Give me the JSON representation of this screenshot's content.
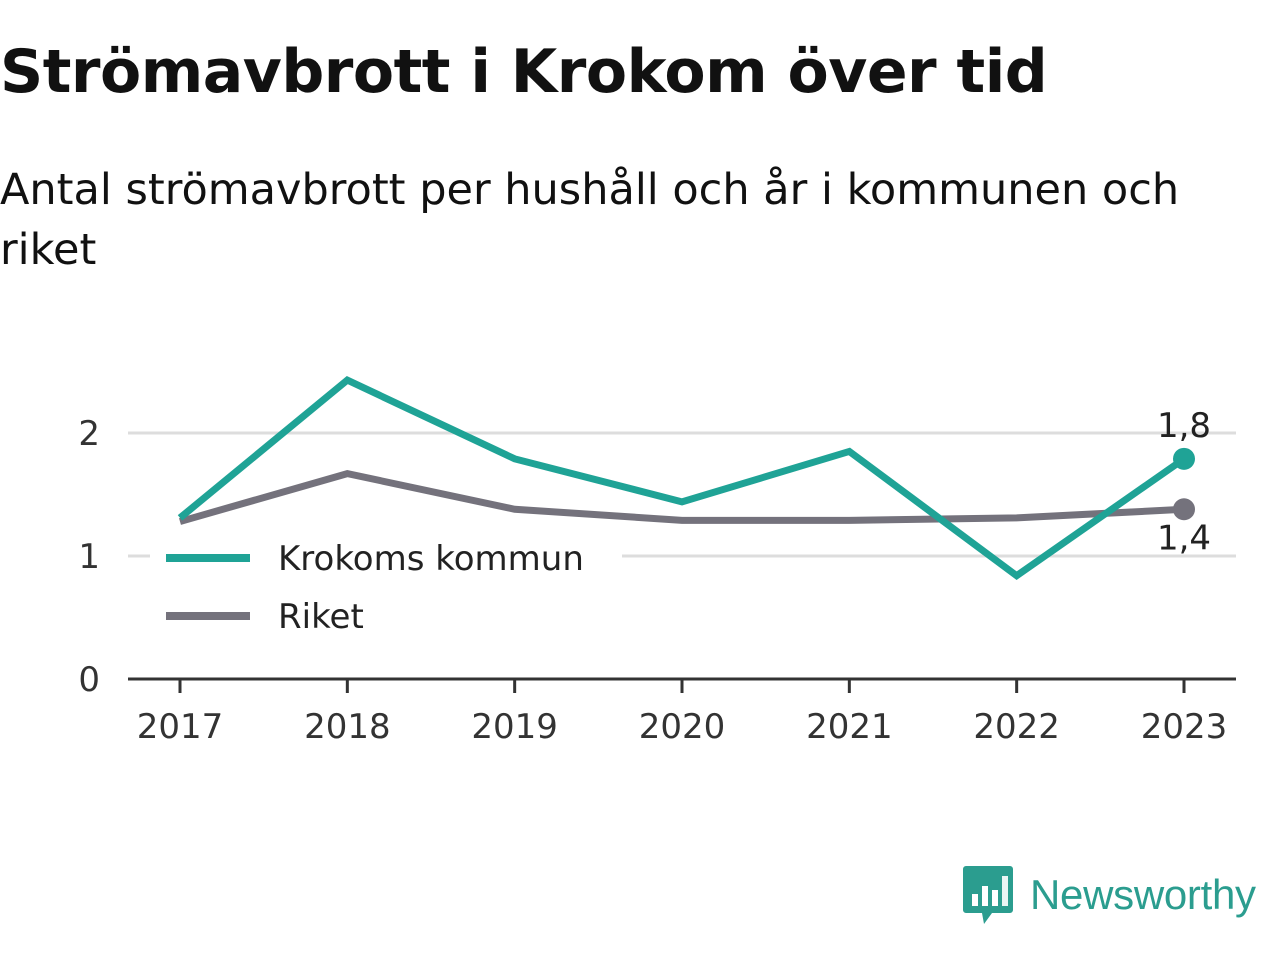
{
  "title": "Strömavbrott i Krokom över tid",
  "subtitle": "Antal strömavbrott per hushåll och år i kommunen och riket",
  "brand": {
    "name": "Newsworthy",
    "icon": "newsworthy-logo-icon",
    "color": "#2b9d8f"
  },
  "chart_data": {
    "type": "line",
    "categories": [
      "2017",
      "2018",
      "2019",
      "2020",
      "2021",
      "2022",
      "2023"
    ],
    "y_ticks": [
      "0",
      "1",
      "2"
    ],
    "ylim": [
      0,
      2.6
    ],
    "grid": true,
    "legend_position": "left",
    "series": [
      {
        "name": "Krokoms kommun",
        "color": "#1fa396",
        "values": [
          1.31,
          2.43,
          1.79,
          1.44,
          1.85,
          0.84,
          1.79
        ],
        "end_label": "1,8"
      },
      {
        "name": "Riket",
        "color": "#74727c",
        "values": [
          1.28,
          1.67,
          1.38,
          1.29,
          1.29,
          1.31,
          1.38
        ],
        "end_label": "1,4"
      }
    ]
  }
}
